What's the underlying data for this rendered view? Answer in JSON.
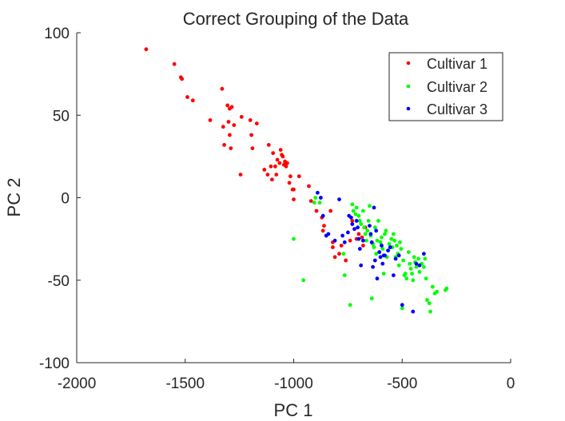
{
  "chart_data": {
    "type": "scatter",
    "title": "Correct Grouping of the Data",
    "xlabel": "PC 1",
    "ylabel": "PC 2",
    "xlim": [
      -2000,
      0
    ],
    "ylim": [
      -100,
      100
    ],
    "xticks": [
      -2000,
      -1500,
      -1000,
      -500,
      0
    ],
    "yticks": [
      -100,
      -50,
      0,
      50,
      100
    ],
    "xtick_labels": [
      "-2000",
      "-1500",
      "-1000",
      "-500",
      "0"
    ],
    "ytick_labels": [
      "-100",
      "-50",
      "0",
      "50",
      "100"
    ],
    "grid": false,
    "legend_position": "top-right",
    "series": [
      {
        "name": "Cultivar 1",
        "color": "#ff0000",
        "points": [
          [
            -1680,
            90
          ],
          [
            -1550,
            81
          ],
          [
            -1520,
            73
          ],
          [
            -1515,
            72
          ],
          [
            -1490,
            61
          ],
          [
            -1465,
            59
          ],
          [
            -1385,
            47
          ],
          [
            -1330,
            66
          ],
          [
            -1325,
            43
          ],
          [
            -1320,
            32
          ],
          [
            -1305,
            56
          ],
          [
            -1295,
            54
          ],
          [
            -1300,
            46
          ],
          [
            -1295,
            38
          ],
          [
            -1290,
            30
          ],
          [
            -1285,
            55
          ],
          [
            -1275,
            44
          ],
          [
            -1245,
            14
          ],
          [
            -1240,
            49
          ],
          [
            -1200,
            47
          ],
          [
            -1195,
            38
          ],
          [
            -1190,
            30
          ],
          [
            -1170,
            45
          ],
          [
            -1135,
            17
          ],
          [
            -1120,
            14
          ],
          [
            -1115,
            32
          ],
          [
            -1105,
            19
          ],
          [
            -1100,
            11
          ],
          [
            -1095,
            27
          ],
          [
            -1085,
            19
          ],
          [
            -1080,
            14
          ],
          [
            -1075,
            23
          ],
          [
            -1065,
            21
          ],
          [
            -1060,
            29
          ],
          [
            -1055,
            26
          ],
          [
            -1050,
            25
          ],
          [
            -1045,
            20
          ],
          [
            -1040,
            22
          ],
          [
            -1035,
            19
          ],
          [
            -1030,
            21
          ],
          [
            -1020,
            9
          ],
          [
            -1015,
            13
          ],
          [
            -1005,
            5
          ],
          [
            -1000,
            5
          ],
          [
            -1000,
            -1
          ],
          [
            -975,
            13
          ],
          [
            -930,
            7
          ],
          [
            -920,
            -2
          ],
          [
            -895,
            -8
          ],
          [
            -870,
            -12
          ],
          [
            -865,
            -20
          ],
          [
            -860,
            -17
          ],
          [
            -830,
            -8
          ],
          [
            -820,
            -27
          ],
          [
            -820,
            -30
          ],
          [
            -810,
            -36
          ],
          [
            -790,
            -34
          ],
          [
            -780,
            -29
          ],
          [
            -760,
            -38
          ],
          [
            -740,
            -26
          ],
          [
            -730,
            -14
          ],
          [
            -710,
            -25
          ],
          [
            -700,
            -22
          ],
          [
            -685,
            -24
          ],
          [
            -680,
            -29
          ],
          [
            -670,
            -18
          ]
        ]
      },
      {
        "name": "Cultivar 2",
        "color": "#00ff00",
        "points": [
          [
            -1000,
            -25
          ],
          [
            -955,
            -50
          ],
          [
            -905,
            -3
          ],
          [
            -900,
            0
          ],
          [
            -880,
            -3
          ],
          [
            -770,
            -34
          ],
          [
            -765,
            -47
          ],
          [
            -740,
            -65
          ],
          [
            -730,
            -4
          ],
          [
            -725,
            -8
          ],
          [
            -715,
            -10
          ],
          [
            -710,
            -6
          ],
          [
            -700,
            -11
          ],
          [
            -695,
            -14
          ],
          [
            -690,
            -16
          ],
          [
            -680,
            -8
          ],
          [
            -675,
            -18
          ],
          [
            -670,
            -22
          ],
          [
            -665,
            -26
          ],
          [
            -660,
            -20
          ],
          [
            -655,
            -14
          ],
          [
            -650,
            -5
          ],
          [
            -645,
            -23
          ],
          [
            -640,
            -61
          ],
          [
            -635,
            -28
          ],
          [
            -630,
            -30
          ],
          [
            -625,
            -18
          ],
          [
            -620,
            -34
          ],
          [
            -615,
            -26
          ],
          [
            -610,
            -14
          ],
          [
            -600,
            -27
          ],
          [
            -595,
            -24
          ],
          [
            -590,
            -31
          ],
          [
            -585,
            -46
          ],
          [
            -580,
            -22
          ],
          [
            -575,
            -20
          ],
          [
            -570,
            -36
          ],
          [
            -565,
            -32
          ],
          [
            -560,
            -28
          ],
          [
            -550,
            -25
          ],
          [
            -545,
            -30
          ],
          [
            -540,
            -22
          ],
          [
            -535,
            -26
          ],
          [
            -530,
            -36
          ],
          [
            -525,
            -29
          ],
          [
            -520,
            -34
          ],
          [
            -515,
            -41
          ],
          [
            -510,
            -27
          ],
          [
            -505,
            -31
          ],
          [
            -500,
            -67
          ],
          [
            -495,
            -38
          ],
          [
            -490,
            -47
          ],
          [
            -485,
            -46
          ],
          [
            -480,
            -49
          ],
          [
            -470,
            -33
          ],
          [
            -465,
            -40
          ],
          [
            -460,
            -43
          ],
          [
            -455,
            -46
          ],
          [
            -450,
            -50
          ],
          [
            -445,
            -36
          ],
          [
            -440,
            -39
          ],
          [
            -435,
            -42
          ],
          [
            -425,
            -37
          ],
          [
            -420,
            -45
          ],
          [
            -410,
            -40
          ],
          [
            -400,
            -42
          ],
          [
            -395,
            -37
          ],
          [
            -390,
            -49
          ],
          [
            -385,
            -62
          ],
          [
            -375,
            -64
          ],
          [
            -370,
            -69
          ],
          [
            -360,
            -54
          ],
          [
            -350,
            -58
          ],
          [
            -340,
            -57
          ],
          [
            -300,
            -56
          ],
          [
            -295,
            -55
          ]
        ]
      },
      {
        "name": "Cultivar 3",
        "color": "#0000ff",
        "points": [
          [
            -890,
            3
          ],
          [
            -875,
            0
          ],
          [
            -865,
            -11
          ],
          [
            -850,
            -23
          ],
          [
            -840,
            -22
          ],
          [
            -810,
            -26
          ],
          [
            -790,
            -1
          ],
          [
            -775,
            -23
          ],
          [
            -765,
            -27
          ],
          [
            -750,
            -21
          ],
          [
            -745,
            -11
          ],
          [
            -735,
            -12
          ],
          [
            -730,
            -16
          ],
          [
            -720,
            -19
          ],
          [
            -710,
            -14
          ],
          [
            -705,
            -18
          ],
          [
            -700,
            -25
          ],
          [
            -695,
            -31
          ],
          [
            -690,
            -41
          ],
          [
            -680,
            -26
          ],
          [
            -650,
            -17
          ],
          [
            -645,
            -22
          ],
          [
            -640,
            -27
          ],
          [
            -635,
            -42
          ],
          [
            -630,
            -6
          ],
          [
            -625,
            -38
          ],
          [
            -620,
            -20
          ],
          [
            -615,
            -49
          ],
          [
            -605,
            -33
          ],
          [
            -600,
            -36
          ],
          [
            -595,
            -29
          ],
          [
            -590,
            -40
          ],
          [
            -585,
            -35
          ],
          [
            -580,
            -35
          ],
          [
            -565,
            -32
          ],
          [
            -555,
            -30
          ],
          [
            -540,
            -47
          ],
          [
            -530,
            -37
          ],
          [
            -515,
            -35
          ],
          [
            -500,
            -65
          ],
          [
            -450,
            -69
          ],
          [
            -435,
            -40
          ],
          [
            -420,
            -41
          ],
          [
            -400,
            -34
          ]
        ]
      }
    ]
  }
}
